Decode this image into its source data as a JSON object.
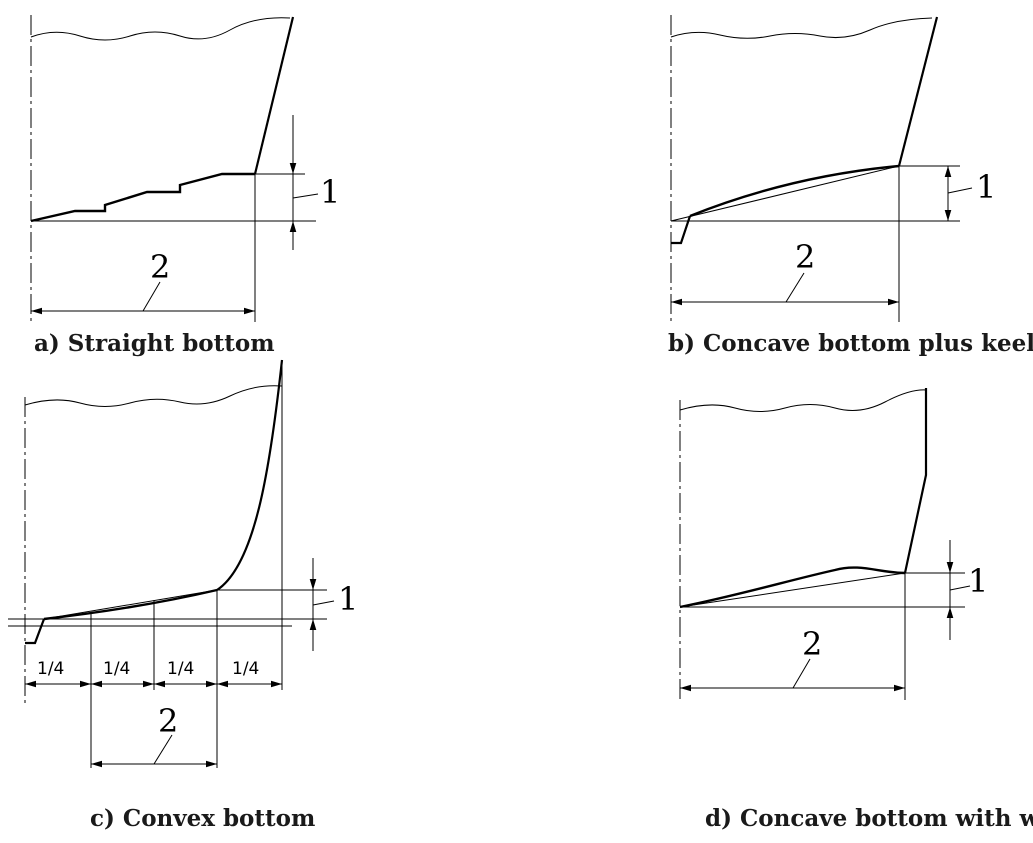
{
  "panels": [
    {
      "id": "a",
      "caption": "a) Straight bottom",
      "label_height": "1",
      "label_width": "2"
    },
    {
      "id": "b",
      "caption": "b) Concave bottom plus keel",
      "label_height": "1",
      "label_width": "2"
    },
    {
      "id": "c",
      "caption": "c) Convex bottom",
      "label_height": "1",
      "label_width": "2",
      "quarter_label": "1/4"
    },
    {
      "id": "d",
      "caption": "d) Concave bottom with wing",
      "label_height": "1",
      "label_width": "2"
    }
  ]
}
